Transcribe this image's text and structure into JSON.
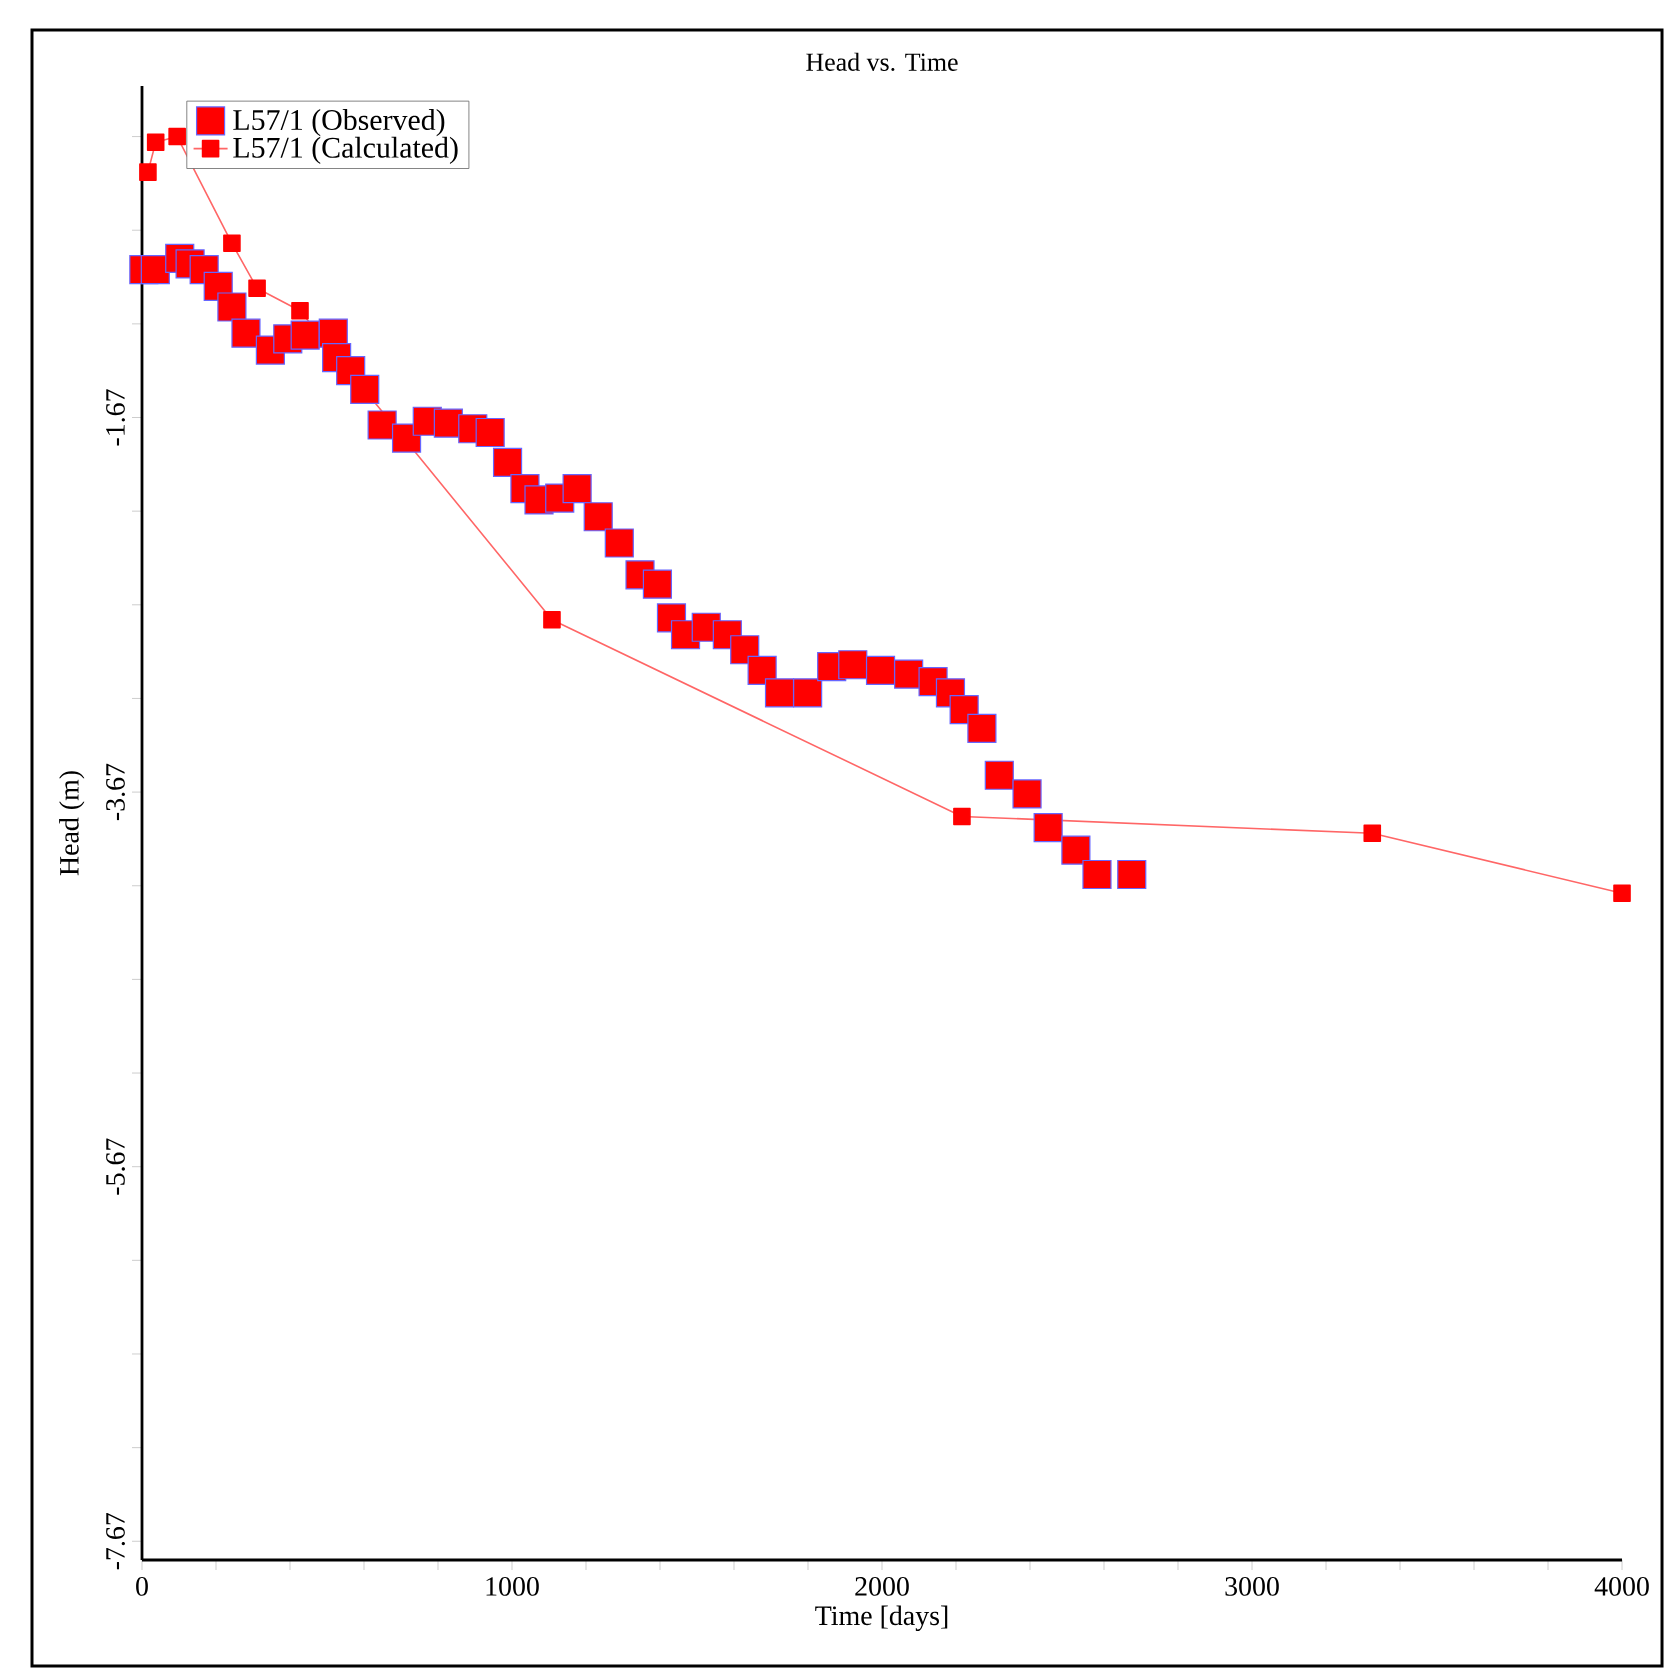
{
  "chart_data": {
    "type": "scatter",
    "title": "Head vs. Time",
    "xlabel": "Time [days]",
    "ylabel": "Head (m)",
    "xlim": [
      0,
      4000
    ],
    "ylim": [
      -7.77,
      0.1
    ],
    "xticks": [
      0,
      {
        "value": 200,
        "label": null
      },
      {
        "value": 400,
        "label": null
      },
      {
        "value": 600,
        "label": null
      },
      {
        "value": 800,
        "label": null
      },
      1000,
      {
        "value": 1200,
        "label": null
      },
      {
        "value": 1400,
        "label": null
      },
      {
        "value": 1600,
        "label": null
      },
      {
        "value": 1800,
        "label": null
      },
      2000,
      {
        "value": 2200,
        "label": null
      },
      {
        "value": 2400,
        "label": null
      },
      {
        "value": 2600,
        "label": null
      },
      {
        "value": 2800,
        "label": null
      },
      3000,
      {
        "value": 3200,
        "label": null
      },
      {
        "value": 3400,
        "label": null
      },
      {
        "value": 3600,
        "label": null
      },
      {
        "value": 3800,
        "label": null
      },
      4000
    ],
    "yticks": [
      {
        "value": -0.17,
        "label": null
      },
      {
        "value": -0.67,
        "label": null
      },
      {
        "value": -1.17,
        "label": null
      },
      -1.67,
      {
        "value": -2.17,
        "label": null
      },
      {
        "value": -2.67,
        "label": null
      },
      {
        "value": -3.17,
        "label": null
      },
      -3.67,
      {
        "value": -4.17,
        "label": null
      },
      {
        "value": -4.67,
        "label": null
      },
      {
        "value": -5.17,
        "label": null
      },
      -5.67,
      {
        "value": -6.17,
        "label": null
      },
      {
        "value": -6.67,
        "label": null
      },
      {
        "value": -7.17,
        "label": null
      },
      -7.67
    ],
    "legend": "top left",
    "marker": "square",
    "series": [
      {
        "name": "L57/1 (Observed)",
        "color": "#ff0000",
        "x": [
          5,
          36,
          102,
          130,
          168,
          206,
          243,
          281,
          347,
          394,
          441,
          517,
          526,
          564,
          602,
          649,
          715,
          771,
          828,
          894,
          941,
          988,
          1035,
          1073,
          1129,
          1176,
          1233,
          1290,
          1346,
          1393,
          1431,
          1469,
          1525,
          1582,
          1629,
          1676,
          1723,
          1799,
          1864,
          1921,
          1996,
          2072,
          2138,
          2185,
          2222,
          2270,
          2317,
          2392,
          2449,
          2524,
          2581,
          2675
        ],
        "values": [
          -0.88,
          -0.88,
          -0.82,
          -0.85,
          -0.88,
          -0.97,
          -1.08,
          -1.22,
          -1.31,
          -1.25,
          -1.23,
          -1.22,
          -1.35,
          -1.42,
          -1.52,
          -1.71,
          -1.78,
          -1.69,
          -1.7,
          -1.73,
          -1.75,
          -1.91,
          -2.05,
          -2.11,
          -2.1,
          -2.05,
          -2.2,
          -2.34,
          -2.51,
          -2.56,
          -2.74,
          -2.83,
          -2.79,
          -2.83,
          -2.91,
          -3.02,
          -3.14,
          -3.14,
          -3.0,
          -2.99,
          -3.02,
          -3.04,
          -3.08,
          -3.14,
          -3.23,
          -3.33,
          -3.58,
          -3.68,
          -3.86,
          -3.98,
          -4.11,
          -4.11
        ]
      },
      {
        "name": "L57/1 (Calculated)",
        "type": "line",
        "color": "#ff0000",
        "x": [
          16,
          37,
          95,
          243,
          311,
          427,
          1108,
          2216,
          3325,
          4000
        ],
        "values": [
          -0.36,
          -0.2,
          -0.17,
          -0.74,
          -0.98,
          -1.1,
          -2.75,
          -3.8,
          -3.89,
          -4.21
        ]
      }
    ]
  }
}
